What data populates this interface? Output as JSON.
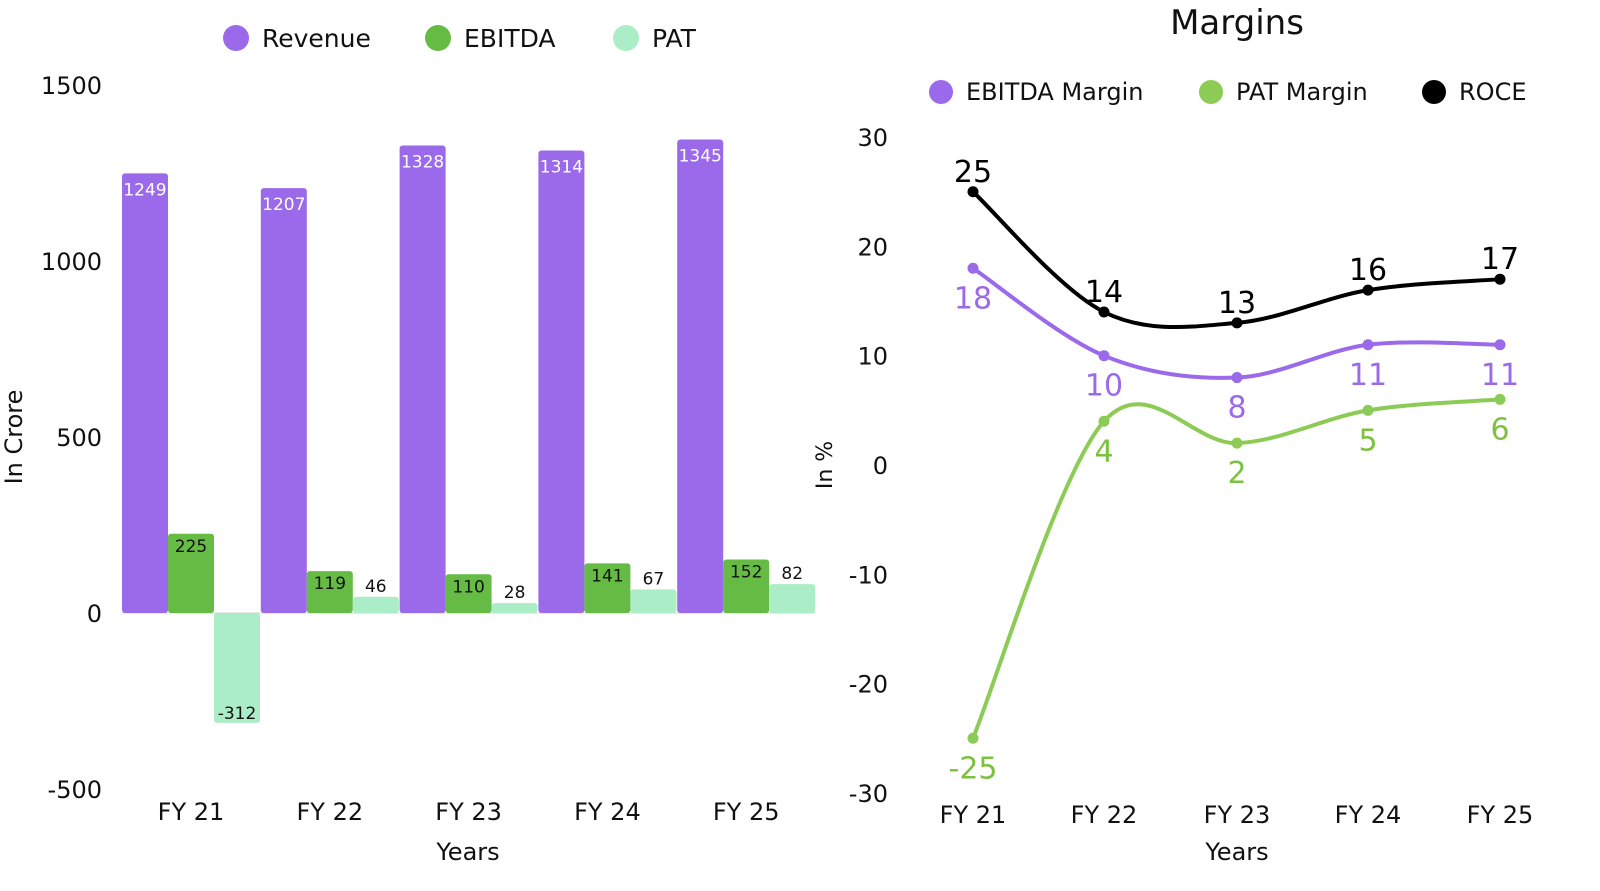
{
  "chart_data": [
    {
      "type": "bar",
      "title": "",
      "categories": [
        "FY 21",
        "FY 22",
        "FY 23",
        "FY 24",
        "FY 25"
      ],
      "series": [
        {
          "name": "Revenue",
          "color": "#9B6AEA",
          "values": [
            1249,
            1207,
            1328,
            1314,
            1345
          ],
          "labels": [
            "1249",
            "1207",
            "1328",
            "1314",
            "1345"
          ]
        },
        {
          "name": "EBITDA",
          "color": "#66BB44",
          "values": [
            225,
            119,
            110,
            141,
            152
          ],
          "labels": [
            "225",
            "119",
            "110",
            "141",
            "152"
          ]
        },
        {
          "name": "PAT",
          "color": "#ABEDC6",
          "values": [
            -312,
            46,
            28,
            67,
            82
          ],
          "labels": [
            "-312",
            "46",
            "28",
            "67",
            "82"
          ]
        }
      ],
      "xlabel": "Years",
      "ylabel": "In Crore",
      "ylim": [
        -500,
        1500
      ],
      "yticks": [
        -500,
        0,
        500,
        1000,
        1500
      ],
      "ytick_labels": [
        "-500",
        "0",
        "500",
        "1000",
        "1500"
      ],
      "legend": "top-center",
      "grid": false
    },
    {
      "type": "line",
      "title": "Margins",
      "categories": [
        "FY 21",
        "FY 22",
        "FY 23",
        "FY 24",
        "FY 25"
      ],
      "series": [
        {
          "name": "EBITDA Margin",
          "color": "#9B6AEA",
          "values": [
            18,
            10,
            8,
            11,
            11
          ],
          "labels": [
            "18",
            "10",
            "8",
            "11",
            "11"
          ]
        },
        {
          "name": "PAT Margin",
          "color": "#8CCB55",
          "values": [
            -25,
            4,
            2,
            5,
            6
          ],
          "labels": [
            "-25",
            "4",
            "2",
            "5",
            "6"
          ]
        },
        {
          "name": "ROCE",
          "color": "#000000",
          "values": [
            25,
            14,
            13,
            16,
            17
          ],
          "labels": [
            "25",
            "14",
            "13",
            "16",
            "17"
          ]
        }
      ],
      "xlabel": "Years",
      "ylabel": "In %",
      "ylim": [
        -30,
        30
      ],
      "yticks": [
        -30,
        -20,
        -10,
        0,
        10,
        20,
        30
      ],
      "ytick_labels": [
        "-30",
        "-20",
        "-10",
        "0",
        "10",
        "20",
        "30"
      ],
      "legend": "top",
      "grid": false
    }
  ]
}
